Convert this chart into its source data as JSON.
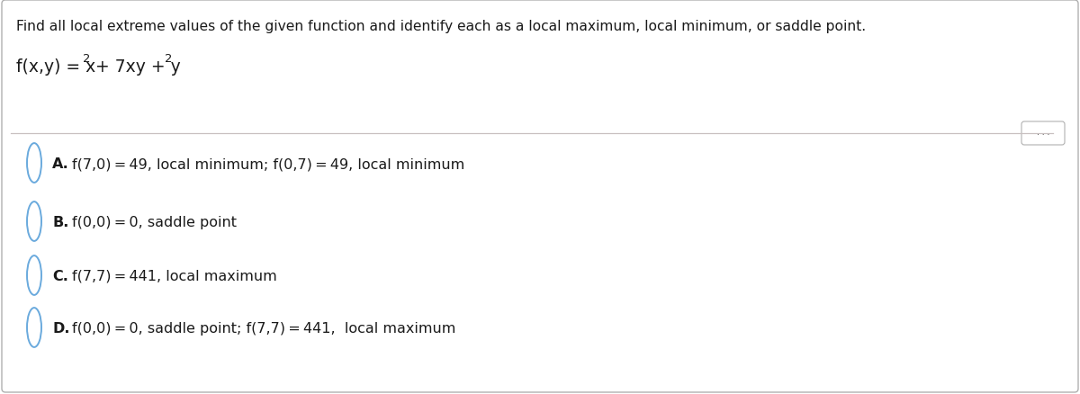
{
  "title_line": "Find all local extreme values of the given function and identify each as a local maximum, local minimum, or saddle point.",
  "bg_color": "#ffffff",
  "border_color": "#b0b0b0",
  "text_color": "#1a1a1a",
  "circle_color": "#6aaadd",
  "separator_color": "#c8c0c0",
  "title_fontsize": 11.2,
  "option_fontsize": 11.5,
  "function_fontsize": 13.5,
  "function_super_fontsize": 9.5,
  "options": [
    {
      "letter": "A.",
      "text": "f(7,0) = 49, local minimum; f(0,7) = 49, local minimum"
    },
    {
      "letter": "B.",
      "text": "f(0,0) = 0, saddle point"
    },
    {
      "letter": "C.",
      "text": "f(7,7) = 441, local maximum"
    },
    {
      "letter": "D.",
      "text": "f(0,0) = 0, saddle point; f(7,7) = 441,  local maximum"
    }
  ]
}
